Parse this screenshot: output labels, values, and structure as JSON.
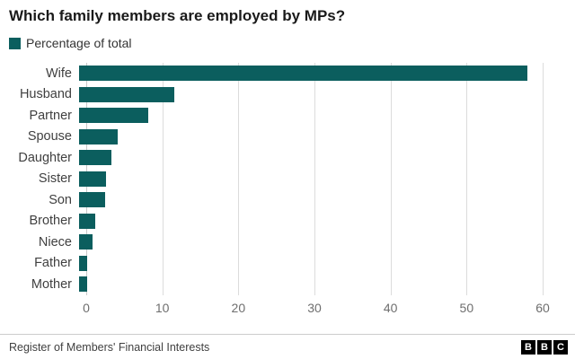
{
  "title": "Which family members are employed by MPs?",
  "legend": {
    "label": "Percentage of total",
    "color": "#0b5e5e"
  },
  "chart_data": {
    "type": "bar",
    "orientation": "horizontal",
    "title": "Which family members are employed by MPs?",
    "categories": [
      "Wife",
      "Husband",
      "Partner",
      "Spouse",
      "Daughter",
      "Sister",
      "Son",
      "Brother",
      "Niece",
      "Father",
      "Mother"
    ],
    "values": [
      58,
      12.3,
      9,
      5,
      4.2,
      3.5,
      3.4,
      2.1,
      1.8,
      1,
      1
    ],
    "series_name": "Percentage of total",
    "xlabel": "",
    "ylabel": "",
    "xlim": [
      0,
      60
    ],
    "xticks": [
      0,
      10,
      20,
      30,
      40,
      50,
      60
    ],
    "bar_color": "#0b5e5e",
    "grid": true,
    "legend_position": "top-left"
  },
  "footer": {
    "source": "Register of Members' Financial Interests",
    "logo_letters": [
      "B",
      "B",
      "C"
    ]
  }
}
